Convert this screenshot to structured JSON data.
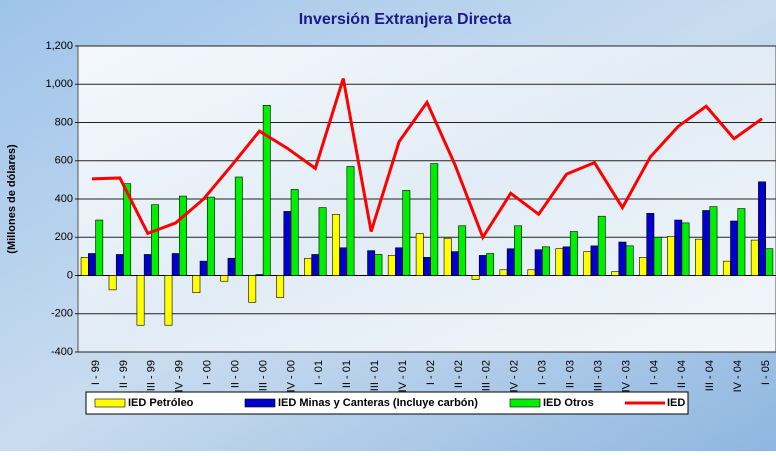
{
  "chart_data": {
    "type": "bar",
    "title": "Inversión Extranjera Directa",
    "y_label": "(Millones de dólares)",
    "categories": [
      "I - 99",
      "II - 99",
      "III - 99",
      "IV - 99",
      "I - 00",
      "II - 00",
      "III - 00",
      "IV - 00",
      "I - 01",
      "II - 01",
      "III - 01",
      "IV - 01",
      "I - 02",
      "II - 02",
      "III - 02",
      "IV - 02",
      "I - 03",
      "II - 03",
      "III - 03",
      "IV - 03",
      "I - 04",
      "II - 04",
      "III - 04",
      "IV - 04",
      "I - 05"
    ],
    "series": [
      {
        "name": "IED Petróleo",
        "color": "#ffff00",
        "values": [
          95,
          -75,
          -260,
          -260,
          -90,
          -30,
          -140,
          -115,
          90,
          320,
          0,
          105,
          220,
          195,
          -20,
          30,
          30,
          140,
          125,
          20,
          95,
          205,
          190,
          75,
          185
        ]
      },
      {
        "name": "IED Minas y Canteras (Incluye carbón)",
        "color": "#0000cc",
        "values": [
          115,
          110,
          110,
          115,
          75,
          90,
          5,
          335,
          110,
          145,
          130,
          145,
          95,
          125,
          105,
          140,
          135,
          150,
          155,
          175,
          325,
          290,
          340,
          285,
          490
        ]
      },
      {
        "name": "IED Otros",
        "color": "#00ee00",
        "values": [
          290,
          480,
          370,
          415,
          410,
          515,
          890,
          450,
          355,
          570,
          110,
          445,
          585,
          260,
          115,
          260,
          150,
          230,
          310,
          155,
          200,
          275,
          360,
          350,
          140
        ]
      },
      {
        "name": "IED",
        "type": "line",
        "color": "#ff0000",
        "values": [
          505,
          510,
          220,
          275,
          400,
          575,
          755,
          665,
          560,
          1030,
          230,
          700,
          905,
          580,
          200,
          430,
          320,
          530,
          590,
          355,
          620,
          780,
          885,
          715,
          820
        ]
      }
    ],
    "ylim": [
      -400,
      1200
    ],
    "yticks": [
      -400,
      -200,
      0,
      200,
      400,
      600,
      800,
      {
        "value": 1000,
        "label": "1,000"
      },
      {
        "value": 1200,
        "label": "1,200"
      }
    ],
    "grid": true,
    "legend": "bottom"
  }
}
